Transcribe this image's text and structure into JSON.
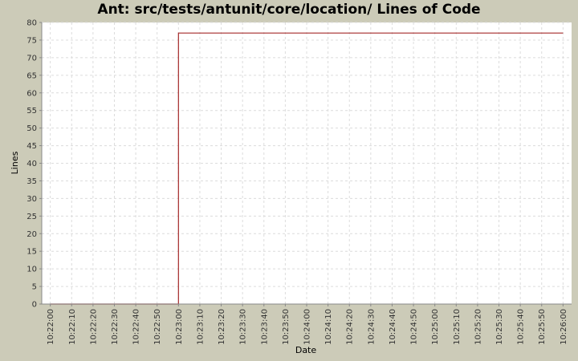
{
  "chart_data": {
    "type": "line",
    "title": "Ant: src/tests/antunit/core/location/ Lines of Code",
    "xlabel": "Date",
    "ylabel": "Lines",
    "x_ticks": [
      "10:22:00",
      "10:22:10",
      "10:22:20",
      "10:22:30",
      "10:22:40",
      "10:22:50",
      "10:23:00",
      "10:23:10",
      "10:23:20",
      "10:23:30",
      "10:23:40",
      "10:23:50",
      "10:24:00",
      "10:24:10",
      "10:24:20",
      "10:24:30",
      "10:24:40",
      "10:24:50",
      "10:25:00",
      "10:25:10",
      "10:25:20",
      "10:25:30",
      "10:25:40",
      "10:25:50",
      "10:26:00"
    ],
    "y_ticks": [
      0,
      5,
      10,
      15,
      20,
      25,
      30,
      35,
      40,
      45,
      50,
      55,
      60,
      65,
      70,
      75,
      80
    ],
    "ylim": [
      0,
      80
    ],
    "xlim": [
      "10:21:56",
      "10:26:04"
    ],
    "grid": true,
    "step": true,
    "series": [
      {
        "color": "#a52a2a",
        "x": [
          "10:22:00",
          "10:23:00",
          "10:26:00"
        ],
        "y": [
          0,
          77,
          77
        ]
      }
    ],
    "colors": {
      "plot_background": "#ffffff",
      "page_background": "#cccbb8",
      "grid": "#dcdcdc"
    }
  }
}
